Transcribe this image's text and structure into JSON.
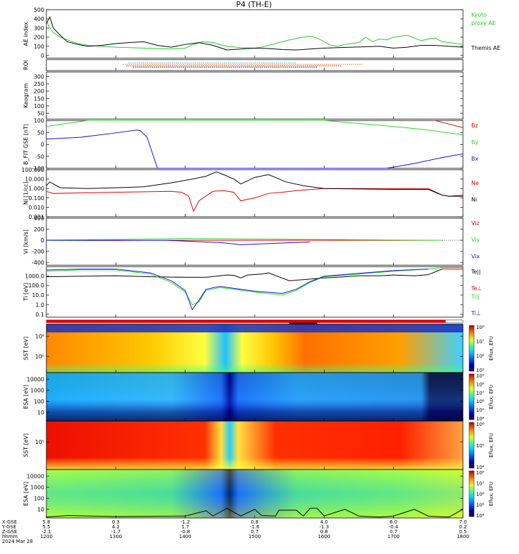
{
  "title": "P4 (TH-E)",
  "colors": {
    "black": "#000000",
    "red": "#e00000",
    "green": "#22dd22",
    "blue": "#1010e0",
    "ae_green": "#22cc22",
    "orange": "#e06000",
    "cyan": "#00b8e0"
  },
  "chart_data": [
    {
      "panel": "ae",
      "type": "line",
      "ylabel": "AE index",
      "ylim": [
        -30,
        500
      ],
      "yticks": [
        "0",
        "100",
        "200",
        "300",
        "400",
        "500"
      ],
      "series": [
        {
          "name": "Kyoto proxy AE",
          "color": "#22cc22",
          "x": [
            12.0,
            12.05,
            12.1,
            12.2,
            12.3,
            12.45,
            12.6,
            12.8,
            13.0,
            13.2,
            13.4,
            13.6,
            13.8,
            14.0,
            14.1,
            14.25,
            14.4,
            14.6,
            14.8,
            15.0,
            15.1,
            15.2,
            15.3,
            15.4,
            15.5,
            15.6,
            15.7,
            15.8,
            15.9,
            16.0,
            16.1,
            16.2,
            16.3,
            16.4,
            16.5,
            16.6,
            16.7,
            16.8,
            16.9,
            17.0,
            17.1,
            17.2,
            17.3,
            17.4,
            17.5,
            17.6,
            17.7,
            17.8,
            17.9,
            18.0
          ],
          "y": [
            380,
            300,
            250,
            200,
            170,
            130,
            110,
            100,
            90,
            85,
            80,
            75,
            70,
            80,
            115,
            150,
            140,
            100,
            85,
            80,
            90,
            110,
            130,
            150,
            170,
            185,
            200,
            210,
            190,
            150,
            110,
            100,
            120,
            130,
            140,
            200,
            150,
            180,
            170,
            200,
            210,
            220,
            190,
            160,
            180,
            190,
            150,
            140,
            130,
            120
          ]
        },
        {
          "name": "Themis AE",
          "color": "#000000",
          "x": [
            12.0,
            12.05,
            12.1,
            12.2,
            12.3,
            12.45,
            12.6,
            12.8,
            13.0,
            13.2,
            13.4,
            13.6,
            13.8,
            14.0,
            14.2,
            14.4,
            14.6,
            14.8,
            15.0,
            15.2,
            15.4,
            15.6,
            15.8,
            16.0,
            16.2,
            16.4,
            16.6,
            16.8,
            17.0,
            17.2,
            17.4,
            17.6,
            17.8,
            18.0
          ],
          "y": [
            350,
            420,
            300,
            220,
            150,
            120,
            100,
            110,
            130,
            140,
            150,
            110,
            90,
            120,
            140,
            110,
            60,
            70,
            80,
            75,
            65,
            60,
            70,
            80,
            85,
            90,
            95,
            100,
            80,
            90,
            110,
            110,
            100,
            90
          ]
        }
      ]
    },
    {
      "panel": "roi",
      "type": "line",
      "ylabel": "ROI",
      "series": [
        {
          "name": "roi-1",
          "color": "#00b8e0",
          "x": [
            13.18,
            15.6
          ],
          "y": [
            3,
            3
          ]
        },
        {
          "name": "roi-2",
          "color": "#e06000",
          "x": [
            13.1,
            16.55
          ],
          "y": [
            2,
            2
          ]
        },
        {
          "name": "roi-3",
          "color": "#e00000",
          "x": [
            13.15,
            16.25
          ],
          "y": [
            1,
            1
          ]
        },
        {
          "name": "roi-4",
          "color": "#000000",
          "x": [
            13.25,
            15.9
          ],
          "y": [
            0,
            0
          ]
        }
      ]
    },
    {
      "panel": "keogram",
      "type": "heatmap",
      "ylabel": "Keogram",
      "ylim": [
        0,
        300
      ],
      "yticks": [
        "50",
        "100",
        "150",
        "200",
        "250",
        "300"
      ]
    },
    {
      "panel": "bfield",
      "type": "line",
      "ylabel": "B_FIT GSE [nT]",
      "ylim": [
        -100,
        100
      ],
      "yticks": [
        "-100",
        "-50",
        "0",
        "50",
        "100"
      ],
      "series": [
        {
          "name": "Bz",
          "color": "#e00000",
          "x": [
            17.6,
            17.8,
            18.0
          ],
          "y": [
            100,
            85,
            70
          ]
        },
        {
          "name": "By",
          "color": "#22dd22",
          "x": [
            12.0,
            12.3,
            12.6,
            12.8,
            16.0,
            17.0,
            17.5,
            18.0
          ],
          "y": [
            75,
            88,
            100,
            100,
            100,
            75,
            60,
            40
          ]
        },
        {
          "name": "Bx",
          "color": "#1010e0",
          "x": [
            12.0,
            12.5,
            13.0,
            13.3,
            13.35,
            13.45,
            13.6,
            16.9,
            17.3,
            17.7,
            18.0
          ],
          "y": [
            22,
            30,
            48,
            60,
            58,
            30,
            -100,
            -100,
            -80,
            -55,
            -40
          ]
        }
      ]
    },
    {
      "panel": "density",
      "type": "line",
      "ylabel": "Ni [1/cc]",
      "yscale": "log",
      "ylim": [
        0.001,
        100
      ],
      "yticks": [
        "0.001",
        "0.010",
        "0.100",
        "1.000",
        "10.000",
        "100.000"
      ],
      "series": [
        {
          "name": "Ne",
          "color": "#e00000",
          "x": [
            12.0,
            12.1,
            13.0,
            13.8,
            13.95,
            14.05,
            14.12,
            14.2,
            14.4,
            14.55,
            14.7,
            14.8,
            15.0,
            15.2,
            15.4,
            15.6,
            16.0,
            16.5,
            17.0,
            17.5,
            17.7,
            17.8,
            18.0
          ],
          "y": [
            0.5,
            0.3,
            0.4,
            0.5,
            0.4,
            0.15,
            0.004,
            0.05,
            0.5,
            0.6,
            0.4,
            0.05,
            0.1,
            0.3,
            0.4,
            0.6,
            1.0,
            1.0,
            1.0,
            1.0,
            0.2,
            0.15,
            0.2
          ]
        },
        {
          "name": "Ni",
          "color": "#000000",
          "x": [
            12.0,
            12.05,
            12.2,
            12.6,
            13.0,
            13.4,
            13.8,
            14.1,
            14.3,
            14.45,
            14.55,
            14.7,
            14.8,
            15.0,
            15.2,
            15.45,
            15.7,
            16.0,
            16.5,
            17.0,
            17.5,
            17.7,
            17.8,
            18.0
          ],
          "y": [
            2,
            5,
            1.2,
            1.0,
            1.2,
            1.5,
            4,
            10,
            20,
            60,
            30,
            10,
            3,
            15,
            30,
            5,
            2,
            1,
            0.9,
            0.8,
            0.8,
            0.2,
            0.15,
            0.15
          ]
        }
      ]
    },
    {
      "panel": "velocity",
      "type": "line",
      "ylabel": "Vi [km/s]",
      "ylim": [
        -450,
        400
      ],
      "yticks": [
        "-400",
        "-200",
        "0",
        "200",
        "400"
      ],
      "series": [
        {
          "name": "Viz",
          "color": "#e00000",
          "x": [
            12.0,
            17.7
          ],
          "y": [
            0,
            0
          ]
        },
        {
          "name": "Viy",
          "color": "#22dd22",
          "x": [
            12.0,
            14.0,
            15.4,
            17.7
          ],
          "y": [
            5,
            30,
            20,
            0
          ]
        },
        {
          "name": "Vix",
          "color": "#1010e0",
          "x": [
            12.0,
            13.0,
            13.7,
            14.5,
            14.8,
            15.2,
            15.8
          ],
          "y": [
            0,
            -5,
            0,
            -40,
            -80,
            -60,
            -30
          ]
        }
      ]
    },
    {
      "panel": "temperature",
      "type": "line",
      "ylabel": "Ti [eV]",
      "yscale": "log",
      "ylim": [
        0.05,
        9000
      ],
      "yticks": [
        "0.1",
        "1.0",
        "10.0",
        "100.0",
        "1000.0"
      ],
      "series": [
        {
          "name": "Te||",
          "color": "#000000",
          "x": [
            12.0,
            12.5,
            13.0,
            13.5,
            14.0,
            14.3,
            14.5,
            14.6,
            14.7,
            14.8,
            14.9,
            15.1,
            15.2,
            15.5,
            15.7,
            16.0,
            16.3,
            16.5,
            16.8,
            17.0,
            17.3,
            17.5,
            17.7,
            18.0
          ],
          "y": [
            800,
            900,
            1000,
            800,
            700,
            700,
            1000,
            1200,
            1100,
            600,
            1200,
            1500,
            2000,
            300,
            400,
            600,
            800,
            1000,
            1000,
            1200,
            1000,
            1300,
            5000,
            5000
          ]
        },
        {
          "name": "Te⊥",
          "color": "#e00000",
          "x": [
            17.7,
            18.0
          ],
          "y": [
            5000,
            5000
          ]
        },
        {
          "name": "Ti||",
          "color": "#22dd22",
          "x": [
            12.0,
            12.5,
            13.0,
            13.5,
            13.8,
            14.0,
            14.1,
            14.2,
            14.3,
            14.5,
            14.7,
            15.0,
            15.4,
            15.6,
            15.8,
            16.0,
            16.5,
            17.0,
            17.5,
            17.7,
            18.0
          ],
          "y": [
            3000,
            4000,
            4000,
            1500,
            200,
            20,
            1.0,
            2,
            30,
            60,
            40,
            20,
            10,
            30,
            200,
            800,
            1500,
            3000,
            5000,
            7000,
            7000
          ]
        },
        {
          "name": "Ti⊥",
          "color": "#1010e0",
          "x": [
            12.0,
            12.5,
            13.0,
            13.5,
            13.8,
            14.0,
            14.1,
            14.2,
            14.3,
            14.5,
            14.7,
            15.0,
            15.4,
            15.6,
            15.8,
            16.0,
            16.5,
            17.0,
            17.5
          ],
          "y": [
            4000,
            5000,
            5000,
            2000,
            300,
            30,
            0.3,
            3,
            40,
            80,
            50,
            25,
            15,
            40,
            250,
            900,
            1800,
            3500,
            5000
          ]
        }
      ]
    },
    {
      "panel": "sst-e",
      "type": "heatmap",
      "ylabel": "SST [eV]",
      "yscale": "log",
      "yticks": [
        "10⁵",
        "10⁶"
      ],
      "colorbar_label": "Eflux, EFU",
      "colorbar_ticks": [
        "10⁵",
        "10⁶",
        "10⁷",
        "10⁸"
      ]
    },
    {
      "panel": "esa-e",
      "type": "heatmap",
      "ylabel": "ESA [eV]",
      "yscale": "log",
      "yticks": [
        "10",
        "100",
        "1000",
        "10000"
      ],
      "colorbar_label": "Eflux, EFU",
      "colorbar_ticks": [
        "10⁴",
        "10⁵",
        "10⁶",
        "10⁷",
        "10⁸",
        "10⁹"
      ]
    },
    {
      "panel": "sst-i",
      "type": "heatmap",
      "ylabel": "SST [eV]",
      "yscale": "log",
      "yticks": [
        "10⁵"
      ],
      "colorbar_label": "Eflux, EFU",
      "colorbar_ticks": [
        "10⁴",
        "10⁵",
        "10⁶"
      ]
    },
    {
      "panel": "esa-i",
      "type": "heatmap",
      "ylabel": "ESA [eV]",
      "yscale": "log",
      "yticks": [
        "10",
        "100",
        "1000",
        "10000"
      ],
      "colorbar_label": "Eflux, EFU",
      "colorbar_ticks": [
        "10⁴",
        "10⁵",
        "10⁶",
        "10⁷",
        "10⁸"
      ]
    }
  ],
  "panels": [
    {
      "key": "ae",
      "top": 14,
      "bottom": 84,
      "ylabel": "AE index",
      "ylabel_color": "#000000"
    },
    {
      "key": "roi",
      "top": 86,
      "bottom": 102,
      "ylabel": "ROI",
      "ylabel_color": "#000000"
    },
    {
      "key": "keogram",
      "top": 104,
      "bottom": 172,
      "ylabel": "Keogram",
      "ylabel_color": "#000000"
    },
    {
      "key": "bfield",
      "top": 174,
      "bottom": 243,
      "ylabel": "B_FIT GSE [nT]",
      "ylabel_color": "#000000"
    },
    {
      "key": "density",
      "top": 245,
      "bottom": 313,
      "ylabel": "Ni [1/cc]",
      "ylabel_color": "#000000"
    },
    {
      "key": "velocity",
      "top": 315,
      "bottom": 383,
      "ylabel": "Vi [km/s]",
      "ylabel_color": "#000000"
    },
    {
      "key": "temperature",
      "top": 385,
      "bottom": 458,
      "ylabel": "Ti [eV]",
      "ylabel_color": "#000000"
    },
    {
      "key": "sst-e",
      "top": 468,
      "bottom": 538,
      "ylabel": "SST [eV]",
      "ylabel_color": "#000000"
    },
    {
      "key": "esa-e",
      "top": 538,
      "bottom": 608,
      "ylabel": "ESA [eV]",
      "ylabel_color": "#000000"
    },
    {
      "key": "sst-i",
      "top": 608,
      "bottom": 678,
      "ylabel": "SST [eV]",
      "ylabel_color": "#000000"
    },
    {
      "key": "esa-i",
      "top": 678,
      "bottom": 748,
      "ylabel": "ESA [eV]",
      "ylabel_color": "#000000"
    }
  ],
  "right_labels": [
    {
      "text": "Kyoto",
      "color": "#22cc22",
      "panel": "ae",
      "row": 0
    },
    {
      "text": "proxy AE",
      "color": "#22cc22",
      "panel": "ae",
      "row": 1
    },
    {
      "text": "Themis AE",
      "color": "#000000",
      "panel": "ae",
      "row": 4
    },
    {
      "text": "Bz",
      "color": "#e00000",
      "panel": "bfield",
      "row": 0
    },
    {
      "text": "By",
      "color": "#22dd22",
      "panel": "bfield",
      "row": 2
    },
    {
      "text": "Bx",
      "color": "#1010e0",
      "panel": "bfield",
      "row": 4
    },
    {
      "text": "Ne",
      "color": "#e00000",
      "panel": "density",
      "row": 1
    },
    {
      "text": "Ni",
      "color": "#000000",
      "panel": "density",
      "row": 3
    },
    {
      "text": "Viz",
      "color": "#e00000",
      "panel": "velocity",
      "row": 0
    },
    {
      "text": "Viy",
      "color": "#22dd22",
      "panel": "velocity",
      "row": 2
    },
    {
      "text": "Vix",
      "color": "#1010e0",
      "panel": "velocity",
      "row": 4
    },
    {
      "text": "Te||",
      "color": "#000000",
      "panel": "temperature",
      "row": 0
    },
    {
      "text": "Te⊥",
      "color": "#e00000",
      "panel": "temperature",
      "row": 2
    },
    {
      "text": "Ti||",
      "color": "#22dd22",
      "panel": "temperature",
      "row": 3
    },
    {
      "text": "Ti⊥",
      "color": "#1010e0",
      "panel": "temperature",
      "row": 5
    }
  ],
  "time_axis": {
    "xlim": [
      12.0,
      18.0
    ],
    "ticks": [
      12.0,
      13.0,
      14.0,
      15.0,
      16.0,
      17.0,
      18.0
    ],
    "row_labels": [
      "X-GSE",
      "Y-GSE",
      "Z-GSE",
      "hhmm",
      "2024 Mar 28"
    ],
    "columns": [
      [
        "5.8",
        "5.5",
        "-2.1",
        "1200"
      ],
      [
        "0.3",
        "4.2",
        "-1.7",
        "1300"
      ],
      [
        "-1.2",
        "1.7",
        "-0.8",
        "1400"
      ],
      [
        "0.8",
        "-1.6",
        "0.7",
        "1500"
      ],
      [
        "4.0",
        "-1.3",
        "0.8",
        "1600"
      ],
      [
        "6.0",
        "-0.4",
        "0.7",
        "1700"
      ],
      [
        "7.0",
        "0.2",
        "0.5",
        "1800"
      ]
    ]
  },
  "tick_label_colors": {
    "column_0": "#000000"
  }
}
